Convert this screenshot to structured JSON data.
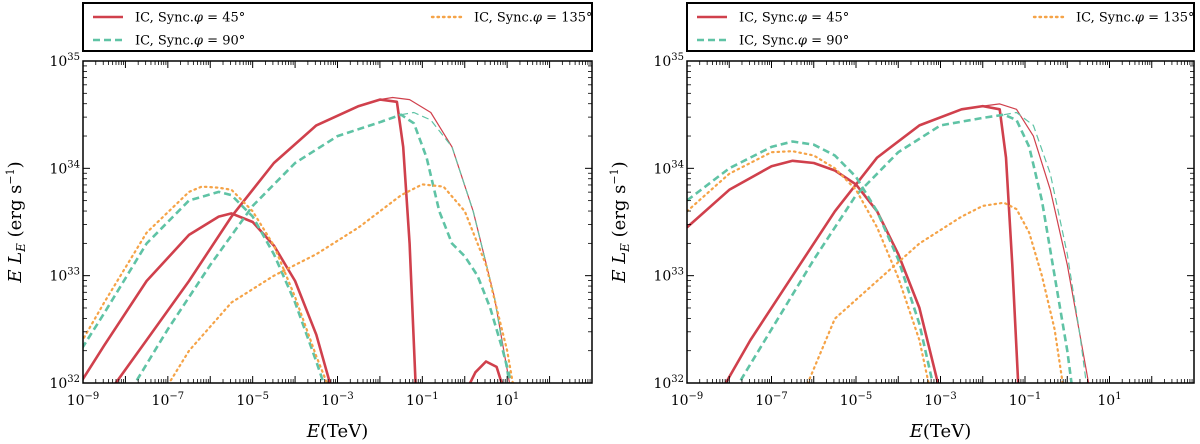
{
  "chart_data": [
    {
      "type": "line",
      "panel": "left",
      "xlabel": "E(TeV)",
      "ylabel": "E L_E (erg s^-1)",
      "xscale": "log",
      "yscale": "log",
      "xlim": [
        1e-09,
        1000
      ],
      "ylim": [
        1e+32,
        1e+35
      ],
      "x_ticks": [
        "10^-9",
        "10^-7",
        "10^-5",
        "10^-3",
        "10^-1",
        "10^1"
      ],
      "y_ticks": [
        "10^32",
        "10^33",
        "10^34",
        "10^35"
      ],
      "legend": {
        "placement": "top (above plot)",
        "entries": [
          {
            "label": "IC, Sync.φ = 45°",
            "color": "#d0404c",
            "style": "solid"
          },
          {
            "label": "IC, Sync.φ = 90°",
            "color": "#5fc3a5",
            "style": "dashed"
          },
          {
            "label": "IC, Sync.φ = 135°",
            "color": "#f5a347",
            "style": "dotted"
          }
        ]
      },
      "series": [
        {
          "name": "Sync. φ=45°",
          "color": "#d0404c",
          "style": "solid",
          "width": 2.6,
          "points": [
            [
              -9.3,
              31.85
            ],
            [
              -8.5,
              32.35
            ],
            [
              -7.5,
              32.95
            ],
            [
              -6.5,
              33.38
            ],
            [
              -5.8,
              33.55
            ],
            [
              -5.5,
              33.58
            ],
            [
              -5.0,
              33.5
            ],
            [
              -4.5,
              33.28
            ],
            [
              -4.0,
              32.95
            ],
            [
              -3.5,
              32.45
            ],
            [
              -3.0,
              31.75
            ]
          ]
        },
        {
          "name": "IC φ=45° (absorbed)",
          "color": "#d0404c",
          "style": "solid",
          "width": 2.6,
          "points": [
            [
              -8.5,
              31.85
            ],
            [
              -7.5,
              32.4
            ],
            [
              -6.5,
              32.95
            ],
            [
              -5.5,
              33.55
            ],
            [
              -4.5,
              34.05
            ],
            [
              -3.5,
              34.4
            ],
            [
              -2.5,
              34.58
            ],
            [
              -2.0,
              34.64
            ],
            [
              -1.6,
              34.62
            ],
            [
              -1.45,
              34.2
            ],
            [
              -1.3,
              33.3
            ],
            [
              -1.15,
              31.9
            ]
          ]
        },
        {
          "name": "IC φ=45° (absorbed, high-energy bump)",
          "color": "#d0404c",
          "style": "solid",
          "width": 2.6,
          "points": [
            [
              0.0,
              31.9
            ],
            [
              0.25,
              32.1
            ],
            [
              0.5,
              32.2
            ],
            [
              0.75,
              32.15
            ],
            [
              0.95,
              31.9
            ]
          ]
        },
        {
          "name": "IC φ=45° (intrinsic)",
          "color": "#d0404c",
          "style": "solid",
          "width": 1.2,
          "points": [
            [
              -2.0,
              34.64
            ],
            [
              -1.7,
              34.66
            ],
            [
              -1.3,
              34.64
            ],
            [
              -0.8,
              34.52
            ],
            [
              -0.3,
              34.2
            ],
            [
              0.2,
              33.6
            ],
            [
              0.7,
              32.8
            ],
            [
              1.1,
              31.9
            ]
          ]
        },
        {
          "name": "Sync. φ=90°",
          "color": "#5fc3a5",
          "style": "dashed",
          "width": 2.6,
          "points": [
            [
              -9.3,
              32.15
            ],
            [
              -8.5,
              32.65
            ],
            [
              -7.5,
              33.3
            ],
            [
              -6.5,
              33.7
            ],
            [
              -5.8,
              33.78
            ],
            [
              -5.5,
              33.75
            ],
            [
              -5.0,
              33.55
            ],
            [
              -4.5,
              33.2
            ],
            [
              -4.0,
              32.75
            ],
            [
              -3.5,
              32.2
            ],
            [
              -3.2,
              31.85
            ]
          ]
        },
        {
          "name": "IC φ=90° (absorbed)",
          "color": "#5fc3a5",
          "style": "dashed",
          "width": 2.6,
          "points": [
            [
              -8.0,
              31.85
            ],
            [
              -7.0,
              32.5
            ],
            [
              -6.0,
              33.1
            ],
            [
              -5.0,
              33.65
            ],
            [
              -4.0,
              34.05
            ],
            [
              -3.0,
              34.3
            ],
            [
              -2.0,
              34.43
            ],
            [
              -1.5,
              34.5
            ],
            [
              -1.2,
              34.42
            ],
            [
              -0.9,
              34.1
            ],
            [
              -0.6,
              33.6
            ],
            [
              -0.3,
              33.3
            ],
            [
              0.0,
              33.18
            ],
            [
              0.3,
              33.0
            ],
            [
              0.6,
              32.7
            ],
            [
              0.9,
              32.3
            ],
            [
              1.2,
              31.85
            ]
          ]
        },
        {
          "name": "IC φ=90° (intrinsic)",
          "color": "#5fc3a5",
          "style": "dashed",
          "width": 1.2,
          "points": [
            [
              -1.5,
              34.5
            ],
            [
              -1.2,
              34.52
            ],
            [
              -0.8,
              34.45
            ],
            [
              -0.3,
              34.2
            ],
            [
              0.2,
              33.6
            ],
            [
              0.7,
              32.8
            ],
            [
              1.1,
              31.85
            ]
          ]
        },
        {
          "name": "Sync. φ=135°",
          "color": "#f5a347",
          "style": "dotted",
          "width": 2.2,
          "points": [
            [
              -9.3,
              32.2
            ],
            [
              -8.5,
              32.75
            ],
            [
              -7.5,
              33.4
            ],
            [
              -6.5,
              33.78
            ],
            [
              -6.2,
              33.83
            ],
            [
              -5.8,
              33.82
            ],
            [
              -5.5,
              33.8
            ],
            [
              -5.0,
              33.6
            ],
            [
              -4.5,
              33.28
            ],
            [
              -4.0,
              32.8
            ],
            [
              -3.5,
              32.25
            ],
            [
              -3.1,
              31.85
            ]
          ]
        },
        {
          "name": "IC φ=135°",
          "color": "#f5a347",
          "style": "dotted",
          "width": 2.2,
          "points": [
            [
              -7.2,
              31.85
            ],
            [
              -6.5,
              32.3
            ],
            [
              -5.5,
              32.75
            ],
            [
              -4.5,
              33.0
            ],
            [
              -3.5,
              33.2
            ],
            [
              -2.5,
              33.45
            ],
            [
              -1.5,
              33.75
            ],
            [
              -1.0,
              33.85
            ],
            [
              -0.5,
              33.83
            ],
            [
              0.0,
              33.6
            ],
            [
              0.5,
              33.1
            ],
            [
              1.0,
              32.3
            ],
            [
              1.2,
              31.85
            ]
          ]
        }
      ]
    },
    {
      "type": "line",
      "panel": "right",
      "xlabel": "E(TeV)",
      "ylabel": "E L_E (erg s^-1)",
      "xscale": "log",
      "yscale": "log",
      "xlim": [
        1e-09,
        1000
      ],
      "ylim": [
        1e+32,
        1e+35
      ],
      "x_ticks": [
        "10^-9",
        "10^-7",
        "10^-5",
        "10^-3",
        "10^-1",
        "10^1"
      ],
      "y_ticks": [
        "10^32",
        "10^33",
        "10^34",
        "10^35"
      ],
      "legend": {
        "placement": "top (above plot)",
        "entries": [
          {
            "label": "IC, Sync.φ = 45°",
            "color": "#d0404c",
            "style": "solid"
          },
          {
            "label": "IC, Sync.φ = 90°",
            "color": "#5fc3a5",
            "style": "dashed"
          },
          {
            "label": "IC, Sync.φ = 135°",
            "color": "#f5a347",
            "style": "dotted"
          }
        ]
      },
      "series": [
        {
          "name": "Sync. φ=45°",
          "color": "#d0404c",
          "style": "solid",
          "width": 2.6,
          "points": [
            [
              -9.0,
              33.45
            ],
            [
              -8.0,
              33.8
            ],
            [
              -7.0,
              34.02
            ],
            [
              -6.5,
              34.07
            ],
            [
              -6.0,
              34.05
            ],
            [
              -5.5,
              33.98
            ],
            [
              -5.0,
              33.85
            ],
            [
              -4.5,
              33.6
            ],
            [
              -4.0,
              33.2
            ],
            [
              -3.5,
              32.7
            ],
            [
              -3.0,
              31.9
            ]
          ]
        },
        {
          "name": "IC φ=45° (absorbed)",
          "color": "#d0404c",
          "style": "solid",
          "width": 2.6,
          "points": [
            [
              -8.3,
              31.85
            ],
            [
              -7.5,
              32.4
            ],
            [
              -6.5,
              33.0
            ],
            [
              -5.5,
              33.6
            ],
            [
              -4.5,
              34.1
            ],
            [
              -3.5,
              34.4
            ],
            [
              -2.5,
              34.55
            ],
            [
              -2.0,
              34.58
            ],
            [
              -1.6,
              34.55
            ],
            [
              -1.45,
              34.1
            ],
            [
              -1.3,
              33.1
            ],
            [
              -1.15,
              31.9
            ]
          ]
        },
        {
          "name": "IC φ=45° (intrinsic)",
          "color": "#d0404c",
          "style": "solid",
          "width": 1.2,
          "points": [
            [
              -2.0,
              34.58
            ],
            [
              -1.6,
              34.6
            ],
            [
              -1.2,
              34.55
            ],
            [
              -0.8,
              34.3
            ],
            [
              -0.4,
              33.8
            ],
            [
              0.0,
              33.1
            ],
            [
              0.3,
              32.45
            ],
            [
              0.55,
              31.9
            ]
          ]
        },
        {
          "name": "Sync. φ=90°",
          "color": "#5fc3a5",
          "style": "dashed",
          "width": 2.6,
          "points": [
            [
              -9.0,
              33.7
            ],
            [
              -8.0,
              34.0
            ],
            [
              -7.0,
              34.2
            ],
            [
              -6.5,
              34.25
            ],
            [
              -6.0,
              34.22
            ],
            [
              -5.5,
              34.12
            ],
            [
              -5.0,
              33.92
            ],
            [
              -4.5,
              33.6
            ],
            [
              -4.0,
              33.15
            ],
            [
              -3.5,
              32.55
            ],
            [
              -3.1,
              31.85
            ]
          ]
        },
        {
          "name": "IC φ=90° (absorbed)",
          "color": "#5fc3a5",
          "style": "dashed",
          "width": 2.6,
          "points": [
            [
              -8.0,
              31.85
            ],
            [
              -7.0,
              32.5
            ],
            [
              -6.0,
              33.15
            ],
            [
              -5.0,
              33.75
            ],
            [
              -4.0,
              34.15
            ],
            [
              -3.0,
              34.4
            ],
            [
              -2.0,
              34.47
            ],
            [
              -1.5,
              34.5
            ],
            [
              -1.2,
              34.45
            ],
            [
              -0.9,
              34.2
            ],
            [
              -0.6,
              33.7
            ],
            [
              -0.3,
              33.0
            ],
            [
              0.0,
              32.3
            ],
            [
              0.15,
              31.85
            ]
          ]
        },
        {
          "name": "IC φ=90° (intrinsic)",
          "color": "#5fc3a5",
          "style": "dashed",
          "width": 1.2,
          "points": [
            [
              -1.5,
              34.5
            ],
            [
              -1.2,
              34.52
            ],
            [
              -0.8,
              34.4
            ],
            [
              -0.4,
              33.95
            ],
            [
              0.0,
              33.2
            ],
            [
              0.3,
              32.45
            ],
            [
              0.5,
              31.85
            ]
          ]
        },
        {
          "name": "Sync. φ=135°",
          "color": "#f5a347",
          "style": "dotted",
          "width": 2.2,
          "points": [
            [
              -9.0,
              33.6
            ],
            [
              -8.0,
              33.95
            ],
            [
              -7.0,
              34.15
            ],
            [
              -6.5,
              34.16
            ],
            [
              -6.0,
              34.12
            ],
            [
              -5.5,
              34.0
            ],
            [
              -5.0,
              33.8
            ],
            [
              -4.5,
              33.45
            ],
            [
              -4.0,
              32.98
            ],
            [
              -3.5,
              32.4
            ],
            [
              -3.2,
              31.85
            ]
          ]
        },
        {
          "name": "IC φ=135°",
          "color": "#f5a347",
          "style": "dotted",
          "width": 2.2,
          "points": [
            [
              -6.3,
              31.85
            ],
            [
              -5.5,
              32.6
            ],
            [
              -4.5,
              32.95
            ],
            [
              -3.5,
              33.3
            ],
            [
              -2.5,
              33.55
            ],
            [
              -2.0,
              33.65
            ],
            [
              -1.5,
              33.68
            ],
            [
              -1.2,
              33.62
            ],
            [
              -0.9,
              33.4
            ],
            [
              -0.6,
              33.0
            ],
            [
              -0.3,
              32.5
            ],
            [
              -0.05,
              31.85
            ]
          ]
        }
      ]
    }
  ]
}
